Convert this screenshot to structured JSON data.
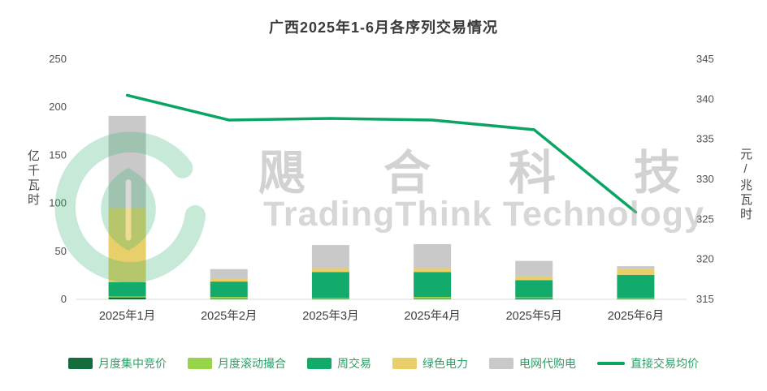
{
  "watermark": {
    "cn": "飓合科技",
    "en": "TradingThink Technology",
    "logo_color": "#35b276"
  },
  "legend_colors": {
    "line_color": "#0aa562"
  },
  "chart_data": {
    "type": "bar",
    "subtype": "stacked-bar-with-line",
    "title": "广西2025年1-6月各序列交易情况",
    "categories": [
      "2025年1月",
      "2025年2月",
      "2025年3月",
      "2025年4月",
      "2025年5月",
      "2025年6月"
    ],
    "left_axis": {
      "label": "亿千瓦时",
      "min": 0,
      "max": 250,
      "ticks": [
        0,
        50,
        100,
        150,
        200,
        250
      ]
    },
    "right_axis": {
      "label": "元/兆瓦时",
      "min": 315,
      "max": 345,
      "ticks": [
        315,
        320,
        325,
        330,
        335,
        340,
        345
      ]
    },
    "grid": false,
    "legend_position": "bottom",
    "bar_series": [
      {
        "name": "月度集中竞价",
        "color": "#156c3c",
        "values": [
          2,
          0.5,
          0.5,
          0.5,
          1,
          0.5
        ]
      },
      {
        "name": "月度滚动撮合",
        "color": "#97d44a",
        "values": [
          1,
          2,
          1,
          2,
          1,
          1
        ]
      },
      {
        "name": "周交易",
        "color": "#12ab6b",
        "values": [
          15,
          16,
          27,
          26,
          18,
          24
        ]
      },
      {
        "name": "绿色电力",
        "color": "#e8cf6a",
        "values": [
          77,
          3,
          4,
          4,
          4,
          6
        ]
      },
      {
        "name": "电网代购电",
        "color": "#c9c9c9",
        "values": [
          96,
          10,
          24,
          25,
          16,
          3
        ]
      }
    ],
    "line_series": {
      "name": "直接交易均价",
      "color": "#0aa562",
      "values": [
        340.5,
        337.4,
        337.6,
        337.4,
        336.2,
        325.9
      ]
    }
  }
}
